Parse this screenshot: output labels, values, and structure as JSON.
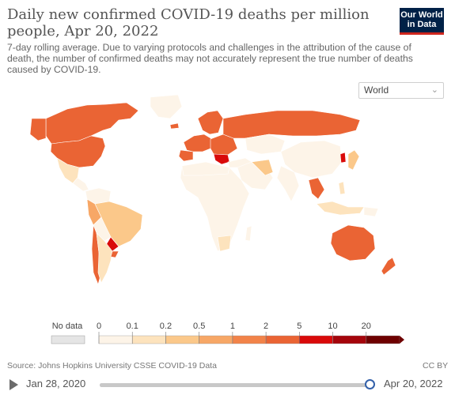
{
  "header": {
    "title": "Daily new confirmed COVID-19 deaths per million people, Apr 20, 2022",
    "subtitle": "7-day rolling average. Due to varying protocols and challenges in the attribution of the cause of death, the number of confirmed deaths may not accurately represent the true number of deaths caused by COVID-19.",
    "logo_line1": "Our World",
    "logo_line2": "in Data"
  },
  "controls": {
    "region_selected": "World",
    "region_chevron_icon": "chevron-down-icon"
  },
  "legend": {
    "no_data_label": "No data",
    "no_data_color": "#e5e5e5",
    "bins": [
      {
        "label": "0",
        "color": "#fdf4e8"
      },
      {
        "label": "0.1",
        "color": "#fde3bd"
      },
      {
        "label": "0.2",
        "color": "#fbc88a"
      },
      {
        "label": "0.5",
        "color": "#f7a766"
      },
      {
        "label": "1",
        "color": "#f28349"
      },
      {
        "label": "2",
        "color": "#ea6434"
      },
      {
        "label": "5",
        "color": "#d90a0a"
      },
      {
        "label": "10",
        "color": "#a5050b"
      },
      {
        "label": "20",
        "color": "#6e0000"
      }
    ]
  },
  "footer": {
    "source": "Source: Johns Hopkins University CSSE COVID-19 Data",
    "license": "CC BY"
  },
  "timeline": {
    "start_label": "Jan 28, 2020",
    "end_label": "Apr 20, 2022",
    "position_fraction": 1.0,
    "play_icon": "play-icon"
  }
}
